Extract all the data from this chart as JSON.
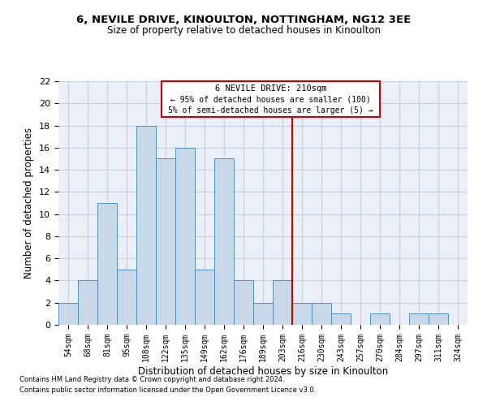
{
  "title1": "6, NEVILE DRIVE, KINOULTON, NOTTINGHAM, NG12 3EE",
  "title2": "Size of property relative to detached houses in Kinoulton",
  "xlabel": "Distribution of detached houses by size in Kinoulton",
  "ylabel": "Number of detached properties",
  "categories": [
    "54sqm",
    "68sqm",
    "81sqm",
    "95sqm",
    "108sqm",
    "122sqm",
    "135sqm",
    "149sqm",
    "162sqm",
    "176sqm",
    "189sqm",
    "203sqm",
    "216sqm",
    "230sqm",
    "243sqm",
    "257sqm",
    "270sqm",
    "284sqm",
    "297sqm",
    "311sqm",
    "324sqm"
  ],
  "values": [
    2,
    4,
    11,
    5,
    18,
    15,
    16,
    5,
    15,
    4,
    2,
    4,
    2,
    2,
    1,
    0,
    1,
    0,
    1,
    1,
    0
  ],
  "bar_color": "#c8d8e8",
  "bar_edge_color": "#5090c0",
  "vline_color": "#cc0000",
  "annotation_title": "6 NEVILE DRIVE: 210sqm",
  "annotation_line1": "← 95% of detached houses are smaller (100)",
  "annotation_line2": "5% of semi-detached houses are larger (5) →",
  "annotation_box_color": "#cc0000",
  "ylim": [
    0,
    22
  ],
  "yticks": [
    0,
    2,
    4,
    6,
    8,
    10,
    12,
    14,
    16,
    18,
    20,
    22
  ],
  "grid_color": "#c8d0e0",
  "background_color": "#eaeff8",
  "footer1": "Contains HM Land Registry data © Crown copyright and database right 2024.",
  "footer2": "Contains public sector information licensed under the Open Government Licence v3.0."
}
